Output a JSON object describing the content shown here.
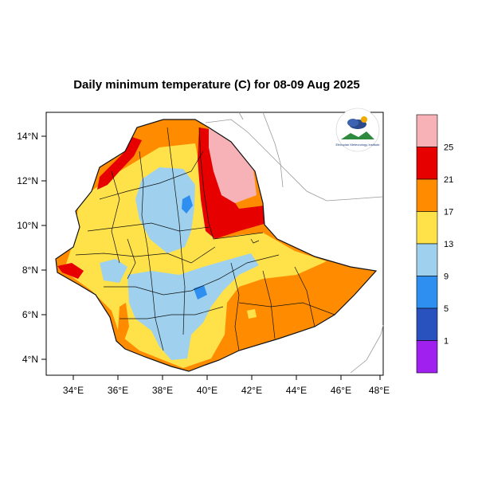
{
  "title": "Daily minimum temperature (C) for 08-09 Aug 2025",
  "axes": {
    "x_ticks": [
      "34°E",
      "36°E",
      "38°E",
      "40°E",
      "42°E",
      "44°E",
      "46°E",
      "48°E"
    ],
    "y_ticks": [
      "14°N",
      "12°N",
      "10°N",
      "8°N",
      "6°N",
      "4°N"
    ]
  },
  "colorbar": {
    "levels": [
      "1",
      "5",
      "9",
      "13",
      "17",
      "21",
      "25"
    ],
    "colors": [
      "#a020f0",
      "#2a52be",
      "#2f8ff0",
      "#9fd1ee",
      "#ffe14a",
      "#ff8c00",
      "#e60000",
      "#f7b2b8"
    ]
  },
  "logo": {
    "name": "ethiopian-meteorology-institute-logo",
    "text": "Ethiopian Meteorology Institute"
  },
  "colors": {
    "ocean": "#ffffff",
    "country_border": "#111111",
    "neighbour_border": "#9a9a9a"
  }
}
